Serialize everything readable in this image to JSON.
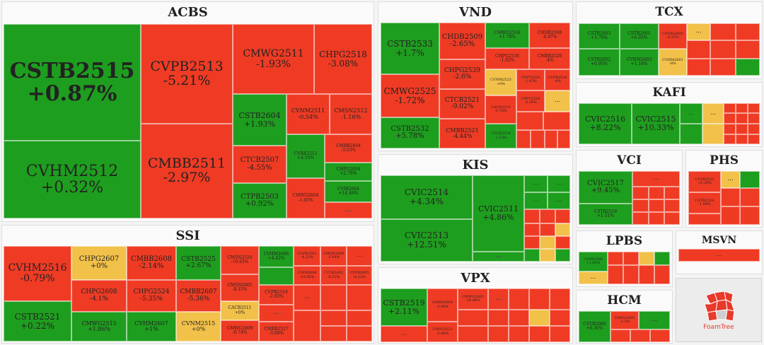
{
  "groups": {
    "acbs": "ACBS",
    "ssi": "SSI",
    "vnd": "VND",
    "kis": "KIS",
    "vpx": "VPX",
    "tcx": "TCX",
    "kafi": "KAFI",
    "vci": "VCI",
    "phs": "PHS",
    "lpbs": "LPBS",
    "msvn": "MSVN",
    "hcm": "HCM"
  },
  "tiles": {
    "a1": {
      "code": "CSTB2515",
      "change": "+0.87%"
    },
    "a2": {
      "code": "CVHM2512",
      "change": "+0.32%"
    },
    "a3": {
      "code": "CVPB2513",
      "change": "-5.21%"
    },
    "a4": {
      "code": "CMBB2511",
      "change": "-2.97%"
    },
    "a5": {
      "code": "CMWG2511",
      "change": "-1.93%"
    },
    "a6": {
      "code": "CHPG2518",
      "change": "-3.08%"
    },
    "a7": {
      "code": "CSTB2604",
      "change": "+1.93%"
    },
    "a8": {
      "code": "CVNM2511",
      "change": "-0.54%"
    },
    "a9": {
      "code": "CMSN2512",
      "change": "-1.16%"
    },
    "a10": {
      "code": "CTCB2507",
      "change": "-4.55%"
    },
    "a11": {
      "code": "CVRE2512",
      "change": "+4.55%"
    },
    "a12": {
      "code": "CMBB2604",
      "change": "-3.03%"
    },
    "a13": {
      "code": "CHPG2604",
      "change": "+2.78%"
    },
    "a14": {
      "code": "CTPB2503",
      "change": "+0.92%"
    },
    "a15": {
      "code": "CMWG2604",
      "change": "-1.65%"
    },
    "a16": {
      "code": "CVIB2604",
      "change": "+14.49%"
    },
    "a17": {
      "code": "...",
      "change": ""
    },
    "s1": {
      "code": "CVHM2516",
      "change": "-0.79%"
    },
    "s2": {
      "code": "CSTB2521",
      "change": "+0.22%"
    },
    "s3": {
      "code": "CHPG2607",
      "change": "+0%"
    },
    "s4": {
      "code": "CHPG2608",
      "change": "-4.1%"
    },
    "s5": {
      "code": "CMWG2515",
      "change": "+1.86%"
    },
    "s6": {
      "code": "CMBB2608",
      "change": "-2.14%"
    },
    "s7": {
      "code": "CHPG2524",
      "change": "-5.35%"
    },
    "s8": {
      "code": "CVHM2607",
      "change": "+1%"
    },
    "s9": {
      "code": "CSTB2525",
      "change": "+2.67%"
    },
    "s10": {
      "code": "CMBB2607",
      "change": "-5.36%"
    },
    "s11": {
      "code": "CVNM2515",
      "change": "+0%"
    },
    "s12": {
      "code": "CMSN2516",
      "change": "-10.93%"
    },
    "s13": {
      "code": "CMSN2605",
      "change": "-8.15%"
    },
    "s14": {
      "code": "CVPB2518",
      "change": "-2.83%"
    },
    "s15": {
      "code": "CMBB2517",
      "change": "-3.08%"
    },
    "s16": {
      "code": "CACB2511",
      "change": "+0%"
    },
    "s17": {
      "code": "CMWG2609",
      "change": "-0.74%"
    },
    "s18": {
      "code": "CVHM2606",
      "change": "+4.42%"
    },
    "s19": {
      "code": "CLPB2503",
      "change": "-4.22%"
    },
    "s20": {
      "code": "CVPB2608",
      "change": "-10.56%"
    },
    "s21": {
      "code": "CMSN2606",
      "change": "-5.64%"
    },
    "s22": {
      "code": "CTCB2605",
      "change": "-8.51%"
    },
    "s23": {
      "code": "CVPB2605",
      "change": "-8.22%"
    },
    "v1": {
      "code": "CSTB2533",
      "change": "+1.7%"
    },
    "v2": {
      "code": "CMWG2525",
      "change": "-1.72%"
    },
    "v3": {
      "code": "CSTB2532",
      "change": "+5.78%"
    },
    "v4": {
      "code": "CHDB2509",
      "change": "-2.65%"
    },
    "v5": {
      "code": "CHPG2539",
      "change": "-2.6%"
    },
    "v6": {
      "code": "CTCB2521",
      "change": "-9.02%"
    },
    "v7": {
      "code": "CMBB2521",
      "change": "-4.44%"
    },
    "v8": {
      "code": "CMWG2534",
      "change": "+1.78%"
    },
    "v9": {
      "code": "CHDB2508",
      "change": "-4.97%"
    },
    "v10": {
      "code": "CHPG2538",
      "change": "-1.92%"
    },
    "v11": {
      "code": "CMBB2520",
      "change": "-4%"
    },
    "v12": {
      "code": "CVNM2523",
      "change": "+0%"
    },
    "v13": {
      "code": "CFPT2529",
      "change": "-2.43%"
    },
    "v14": {
      "code": "CVPB2526",
      "change": "-4%"
    },
    "v15": {
      "code": "CFPT2528",
      "change": "-0.26%"
    },
    "v16": {
      "code": "CACB2515",
      "change": "-0.78%"
    },
    "v17": {
      "code": "CTCB2518",
      "change": "-2.13%"
    },
    "k1": {
      "code": "CVIC2514",
      "change": "+4.34%"
    },
    "k2": {
      "code": "CVIC2513",
      "change": "+12.51%"
    },
    "k3": {
      "code": "CVIC2511",
      "change": "+4.86%"
    },
    "p1": {
      "code": "CSTB2519",
      "change": "+2.11%"
    },
    "p2": {
      "code": "CMBB2604",
      "change": "-5.48%"
    },
    "p3": {
      "code": "CMWG2605",
      "change": "-16.06%"
    },
    "p4": {
      "code": "CHPG2523",
      "change": "-2.49%"
    },
    "t1": {
      "code": "CSTB2603",
      "change": "+3.76%"
    },
    "t2": {
      "code": "CSTB2601",
      "change": "+6.93%"
    },
    "t3": {
      "code": "CVHM2605",
      "change": "-8.55%"
    },
    "t4": {
      "code": "CSTB2602",
      "change": "+0.95%"
    },
    "t5": {
      "code": "CVHM2603",
      "change": "+1.18%"
    },
    "t6": {
      "code": "CVHM2601",
      "change": "-8%"
    },
    "kf1": {
      "code": "CVIC2516",
      "change": "+8.22%"
    },
    "kf2": {
      "code": "CVIC2515",
      "change": "+10.33%"
    },
    "vc1": {
      "code": "CVIC2517",
      "change": "+9.45%"
    },
    "vc2": {
      "code": "CSTB2518",
      "change": "+1.51%"
    },
    "ph1": {
      "code": "CSTB2525",
      "change": "+0.26%"
    },
    "ph2": {
      "code": "CSTB2524",
      "change": "-1.94%"
    },
    "lp1": {
      "code": "CSTB2508",
      "change": "+1.85%"
    },
    "hc1": {
      "code": "CSTB2606",
      "change": "+0.36%"
    },
    "hc2": {
      "code": "CHPG2605",
      "change": "-2.3%"
    }
  },
  "more_label": "...",
  "foamtree_label": "FoamTree",
  "colors": {
    "up": "#1e9e1e",
    "down": "#ef3b24",
    "flat": "#f2c14a"
  }
}
